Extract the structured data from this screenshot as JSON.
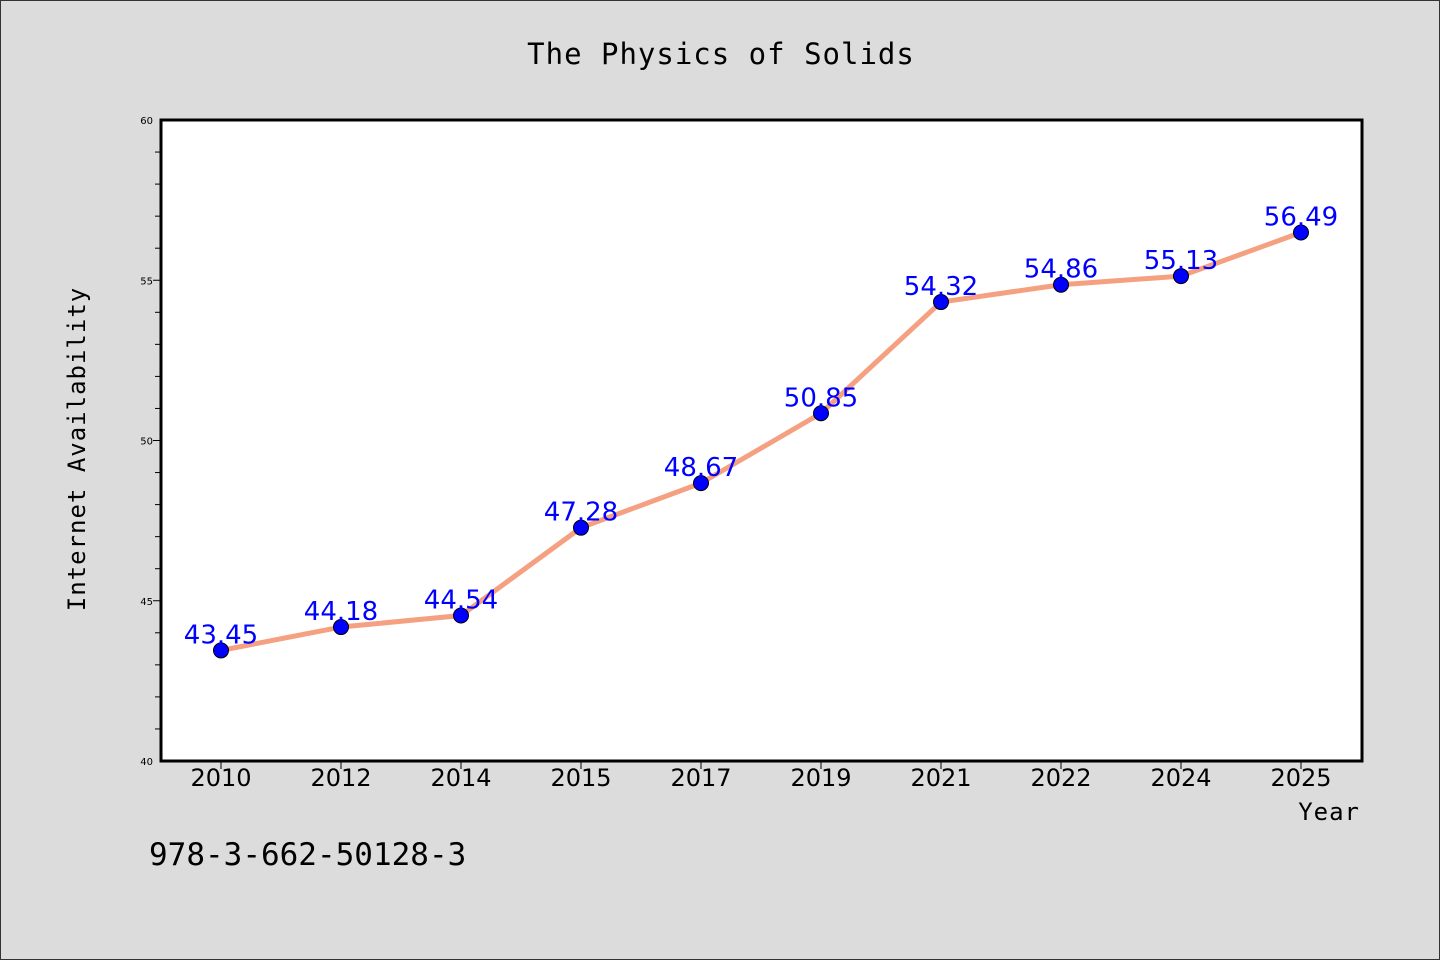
{
  "chart_data": {
    "type": "line",
    "title": "The Physics of Solids",
    "xlabel": "Year",
    "ylabel": "Internet Availability",
    "categories": [
      "2010",
      "2012",
      "2014",
      "2015",
      "2017",
      "2019",
      "2021",
      "2022",
      "2024",
      "2025"
    ],
    "series": [
      {
        "values": [
          43.45,
          44.18,
          44.54,
          47.28,
          48.67,
          50.85,
          54.32,
          54.86,
          55.13,
          56.49
        ],
        "line_color": "#f4a081",
        "marker_color": "#0000ff"
      }
    ],
    "data_labels": [
      "43.45",
      "44.18",
      "44.54",
      "47.28",
      "48.67",
      "50.85",
      "54.32",
      "54.86",
      "55.13",
      "56.49"
    ],
    "ylim": [
      40,
      60
    ],
    "yticks": [
      "40",
      "45",
      "50",
      "55",
      "60"
    ],
    "grid": false,
    "legend": "none"
  },
  "annotation": {
    "isbn": "978-3-662-50128-3"
  },
  "colors": {
    "background": "#dcdcdc",
    "plot_background": "#ffffff",
    "line": "#f4a081",
    "marker": "#0000ff",
    "data_label": "#0000ff"
  }
}
